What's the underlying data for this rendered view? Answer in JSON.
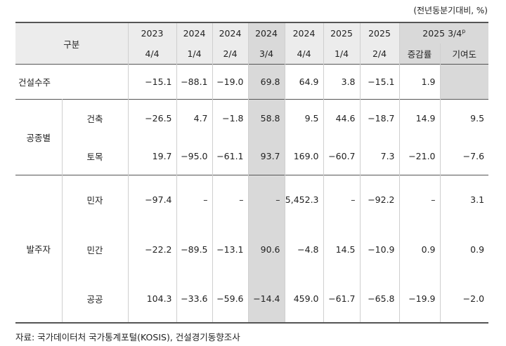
{
  "unit_note": "(전년동분기대비, %)",
  "table": {
    "header": {
      "category": "구분",
      "periods": [
        {
          "year": "2023",
          "quarter": "4/4"
        },
        {
          "year": "2024",
          "quarter": "1/4"
        },
        {
          "year": "2024",
          "quarter": "2/4"
        },
        {
          "year": "2024",
          "quarter": "3/4"
        },
        {
          "year": "2024",
          "quarter": "4/4"
        },
        {
          "year": "2025",
          "quarter": "1/4"
        },
        {
          "year": "2025",
          "quarter": "2/4"
        }
      ],
      "latest": {
        "label": "2025 3/4",
        "superscript": "p",
        "columns": [
          "증감률",
          "기여도"
        ]
      }
    },
    "sections": [
      {
        "label": "건설수주",
        "values": [
          "−15.1",
          "−88.1",
          "−19.0",
          "69.8",
          "64.9",
          "3.8",
          "−15.1",
          "1.9"
        ]
      },
      {
        "label": "공종별",
        "rows": [
          {
            "label": "건축",
            "values": [
              "−26.5",
              "4.7",
              "−1.8",
              "58.8",
              "9.5",
              "44.6",
              "−18.7",
              "14.9",
              "9.5"
            ]
          },
          {
            "label": "토목",
            "values": [
              "19.7",
              "−95.0",
              "−61.1",
              "93.7",
              "169.0",
              "−60.7",
              "7.3",
              "−21.0",
              "−7.6"
            ]
          }
        ]
      },
      {
        "label": "발주자",
        "rows": [
          {
            "label": "민자",
            "values": [
              "−97.4",
              "–",
              "–",
              "–",
              "5,452.3",
              "–",
              "−92.2",
              "–",
              "3.1"
            ]
          },
          {
            "label": "민간",
            "values": [
              "−22.2",
              "−89.5",
              "−13.1",
              "90.6",
              "−4.8",
              "14.5",
              "−10.9",
              "0.9",
              "0.9"
            ]
          },
          {
            "label": "공공",
            "values": [
              "104.3",
              "−33.6",
              "−59.6",
              "−14.4",
              "459.0",
              "−61.7",
              "−65.8",
              "−19.9",
              "−2.0"
            ]
          }
        ]
      }
    ]
  },
  "source": "자료: 국가데이터처 국가통계포털(KOSIS), 건설경기동향조사"
}
